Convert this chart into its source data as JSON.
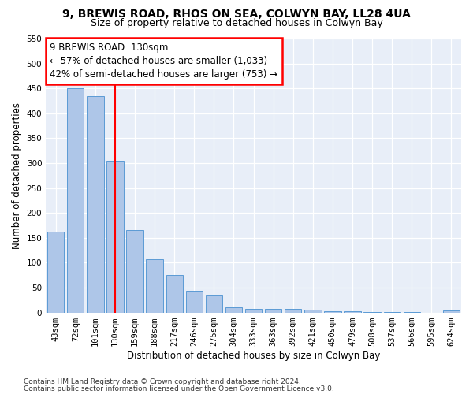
{
  "title1": "9, BREWIS ROAD, RHOS ON SEA, COLWYN BAY, LL28 4UA",
  "title2": "Size of property relative to detached houses in Colwyn Bay",
  "xlabel": "Distribution of detached houses by size in Colwyn Bay",
  "ylabel": "Number of detached properties",
  "categories": [
    "43sqm",
    "72sqm",
    "101sqm",
    "130sqm",
    "159sqm",
    "188sqm",
    "217sqm",
    "246sqm",
    "275sqm",
    "304sqm",
    "333sqm",
    "363sqm",
    "392sqm",
    "421sqm",
    "450sqm",
    "479sqm",
    "508sqm",
    "537sqm",
    "566sqm",
    "595sqm",
    "624sqm"
  ],
  "values": [
    163,
    450,
    435,
    305,
    165,
    107,
    75,
    44,
    35,
    10,
    7,
    7,
    7,
    5,
    3,
    2,
    1,
    1,
    1,
    0,
    4
  ],
  "bar_color": "#aec6e8",
  "bar_edge_color": "#5b9bd5",
  "highlight_index": 3,
  "annotation_line1": "9 BREWIS ROAD: 130sqm",
  "annotation_line2": "← 57% of detached houses are smaller (1,033)",
  "annotation_line3": "42% of semi-detached houses are larger (753) →",
  "annotation_box_color": "white",
  "annotation_box_edge_color": "red",
  "ylim": [
    0,
    550
  ],
  "yticks": [
    0,
    50,
    100,
    150,
    200,
    250,
    300,
    350,
    400,
    450,
    500,
    550
  ],
  "footer1": "Contains HM Land Registry data © Crown copyright and database right 2024.",
  "footer2": "Contains public sector information licensed under the Open Government Licence v3.0.",
  "bg_color": "#e8eef8",
  "grid_color": "white",
  "title1_fontsize": 10,
  "title2_fontsize": 9,
  "axis_label_fontsize": 8.5,
  "tick_fontsize": 7.5,
  "annotation_fontsize": 8.5,
  "footer_fontsize": 6.5
}
